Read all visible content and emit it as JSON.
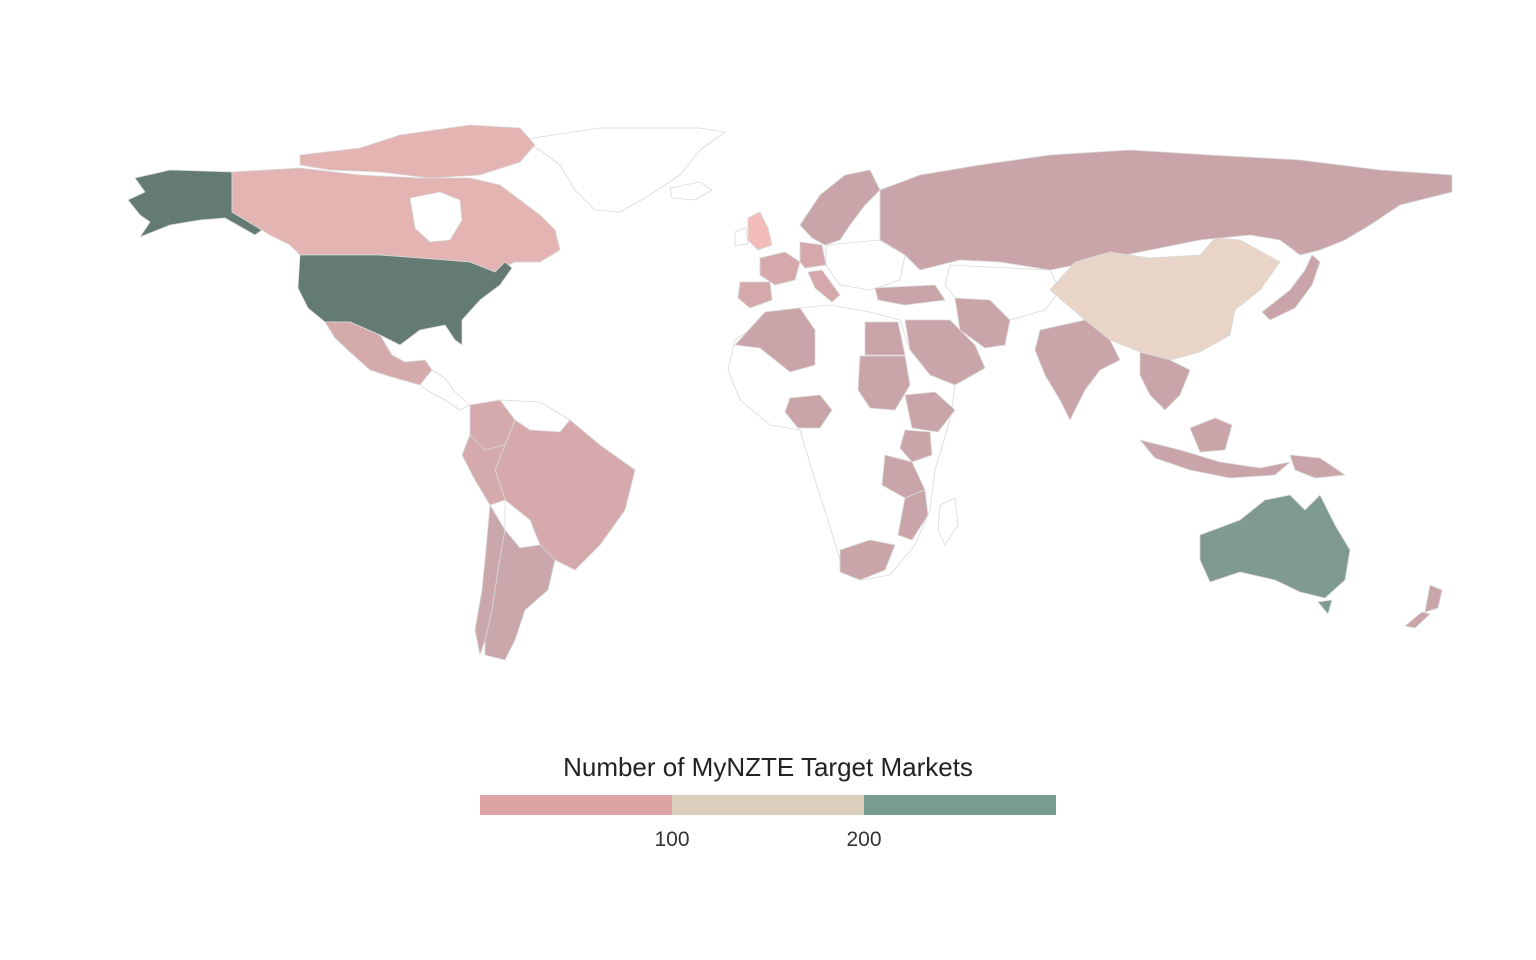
{
  "legend": {
    "title": "Number of MyNZTE Target Markets",
    "ticks": [
      "100",
      "200"
    ],
    "colors": [
      "#dca3a3",
      "#dccfbe",
      "#789c91"
    ]
  },
  "map_data": {
    "projection": "equirectangular",
    "border_color": "#d9d9d9",
    "no_data_color": "#ffffff",
    "regions": [
      {
        "name": "United States",
        "bin": "over 200",
        "color": "#647a74"
      },
      {
        "name": "Australia",
        "bin": "over 200",
        "color": "#7e9a91"
      },
      {
        "name": "China",
        "bin": "100-200",
        "color": "#e8d5c7"
      },
      {
        "name": "United Kingdom",
        "bin": "under 100",
        "color": "#f2bcb8"
      },
      {
        "name": "Canada",
        "bin": "under 100",
        "color": "#e3b4b2"
      },
      {
        "name": "Brazil",
        "bin": "under 100",
        "color": "#d6aaac"
      },
      {
        "name": "Russia",
        "bin": "under 100",
        "color": "#c9a5a9"
      },
      {
        "name": "Mexico",
        "bin": "under 100",
        "color": "#d5aaab"
      },
      {
        "name": "Argentina",
        "bin": "under 100",
        "color": "#c9a7aa"
      },
      {
        "name": "Chile",
        "bin": "under 100",
        "color": "#c9a7aa"
      },
      {
        "name": "Peru",
        "bin": "under 100",
        "color": "#d4aaac"
      },
      {
        "name": "Colombia",
        "bin": "under 100",
        "color": "#d4aaac"
      },
      {
        "name": "India",
        "bin": "under 100",
        "color": "#c9a5a9"
      },
      {
        "name": "Japan",
        "bin": "under 100",
        "color": "#c9a5a9"
      },
      {
        "name": "Saudi Arabia",
        "bin": "under 100",
        "color": "#c9a5a9"
      },
      {
        "name": "Egypt",
        "bin": "under 100",
        "color": "#c9a5a9"
      },
      {
        "name": "Algeria",
        "bin": "under 100",
        "color": "#c9a5a9"
      },
      {
        "name": "Sudan",
        "bin": "under 100",
        "color": "#c9a5a9"
      },
      {
        "name": "Nigeria",
        "bin": "under 100",
        "color": "#c9a5a9"
      },
      {
        "name": "Ethiopia",
        "bin": "under 100",
        "color": "#c9a5a9"
      },
      {
        "name": "Kenya",
        "bin": "under 100",
        "color": "#c9a5a9"
      },
      {
        "name": "Tanzania",
        "bin": "under 100",
        "color": "#c9a5a9"
      },
      {
        "name": "Mozambique",
        "bin": "under 100",
        "color": "#c9a5a9"
      },
      {
        "name": "South Africa",
        "bin": "under 100",
        "color": "#c9a5a9"
      },
      {
        "name": "Turkey",
        "bin": "under 100",
        "color": "#c9a5a9"
      },
      {
        "name": "Iran",
        "bin": "under 100",
        "color": "#c9a5a9"
      },
      {
        "name": "France",
        "bin": "under 100",
        "color": "#d5a9ab"
      },
      {
        "name": "Spain",
        "bin": "under 100",
        "color": "#d5a9ab"
      },
      {
        "name": "Germany",
        "bin": "under 100",
        "color": "#d5a9ab"
      },
      {
        "name": "Italy",
        "bin": "under 100",
        "color": "#d5a9ab"
      },
      {
        "name": "Scandinavia",
        "bin": "under 100",
        "color": "#c9a5a9"
      },
      {
        "name": "Southeast Asia",
        "bin": "under 100",
        "color": "#c9a5a9"
      },
      {
        "name": "Indonesia",
        "bin": "under 100",
        "color": "#c9a5a9"
      },
      {
        "name": "Papua New Guinea",
        "bin": "under 100",
        "color": "#c9a5a9"
      },
      {
        "name": "New Zealand",
        "bin": "under 100",
        "color": "#c9a5a9"
      }
    ]
  }
}
